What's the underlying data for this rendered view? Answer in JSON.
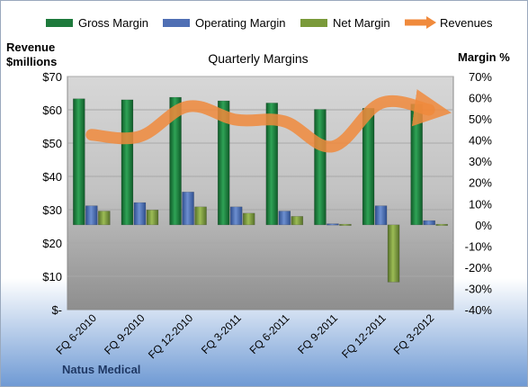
{
  "chart_data": {
    "type": "bar",
    "title": "Quarterly Margins",
    "left_axis_label": [
      "Revenue",
      "$millions"
    ],
    "right_axis_label": "Margin %",
    "company": "Natus Medical",
    "categories": [
      "FQ 6-2010",
      "FQ 9-2010",
      "FQ 12-2010",
      "FQ 3-2011",
      "FQ 6-2011",
      "FQ 9-2011",
      "FQ 12-2011",
      "FQ 3-2012"
    ],
    "left_ticks": [
      "$-",
      "$10",
      "$20",
      "$30",
      "$40",
      "$50",
      "$60",
      "$70"
    ],
    "right_ticks": [
      "-40%",
      "-30%",
      "-20%",
      "-10%",
      "0%",
      "10%",
      "20%",
      "30%",
      "40%",
      "50%",
      "60%",
      "70%"
    ],
    "ylim_left": [
      0,
      70
    ],
    "ylim_right": [
      -40,
      70
    ],
    "series": [
      {
        "name": "Gross Margin",
        "axis": "right",
        "color": "#1e7a3c",
        "values": [
          59.5,
          59.0,
          60.2,
          58.5,
          57.5,
          54.5,
          55.0,
          57.0
        ]
      },
      {
        "name": "Operating Margin",
        "axis": "right",
        "color": "#4f6fb4",
        "values": [
          9.0,
          10.5,
          15.5,
          8.5,
          6.5,
          0.5,
          9.0,
          2.0
        ]
      },
      {
        "name": "Net Margin",
        "axis": "right",
        "color": "#7a9a3a",
        "values": [
          6.5,
          7.0,
          8.5,
          5.5,
          4.0,
          0.3,
          -27.0,
          0.3
        ]
      },
      {
        "name": "Revenues",
        "axis": "left",
        "color": "#f08a3c",
        "values": [
          52.5,
          52.0,
          61.0,
          57.0,
          56.5,
          49.0,
          62.0,
          60.0
        ]
      }
    ],
    "legend_position": "top",
    "grid": true
  }
}
